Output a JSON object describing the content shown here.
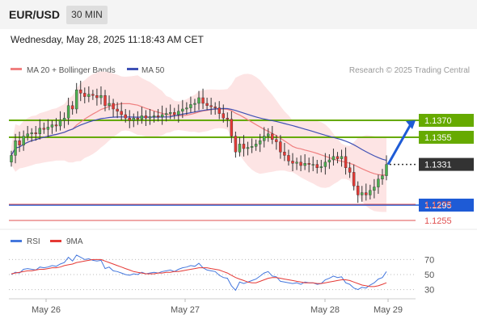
{
  "header": {
    "symbol": "EUR/USD",
    "timeframe": "30 MIN"
  },
  "timestamp": "Wednesday, May 28, 2025 11:18:43 AM CET",
  "legend": {
    "ma20": "MA 20 + Bollinger Bands",
    "ma50": "MA 50",
    "source": "Research © 2025 Trading Central"
  },
  "rsi_legend": {
    "rsi": "RSI",
    "ma": "9MA"
  },
  "colors": {
    "up": "#4caf50",
    "down": "#e53935",
    "ma20": "#f08080",
    "ma50": "#3f51b5",
    "bollinger": "#fde4e4",
    "resistance": "#66aa00",
    "support": "#1e5bd6",
    "support_red": "#e05050",
    "current": "#333333",
    "arrow": "#1e5bd6",
    "rsi": "#4477dd",
    "rsi_ma": "#e53935"
  },
  "chart_data": [
    {
      "type": "candlestick",
      "title": "EUR/USD 30 MIN",
      "ylim": [
        1.128,
        1.1405
      ],
      "x_ticks": [
        "May 26",
        "May 27",
        "May 28",
        "May 29"
      ],
      "levels": [
        {
          "value": 1.137,
          "label": "1.1370",
          "kind": "resistance"
        },
        {
          "value": 1.1355,
          "label": "1.1355",
          "kind": "resistance"
        },
        {
          "value": 1.1331,
          "label": "1.1331",
          "kind": "current"
        },
        {
          "value": 1.1295,
          "label": "1.1295",
          "kind": "support"
        },
        {
          "value": 1.1275,
          "label": "1.1275",
          "kind": "support_minor"
        },
        {
          "value": 1.1255,
          "label": "1.1255",
          "kind": "support_minor"
        }
      ],
      "close": [
        1.1339,
        1.1352,
        1.1348,
        1.1356,
        1.1358,
        1.1359,
        1.1358,
        1.1363,
        1.1362,
        1.1364,
        1.1366,
        1.1365,
        1.137,
        1.1372,
        1.1383,
        1.138,
        1.1397,
        1.1394,
        1.1391,
        1.1393,
        1.1392,
        1.139,
        1.1392,
        1.1383,
        1.1385,
        1.138,
        1.1378,
        1.1375,
        1.1372,
        1.137,
        1.1372,
        1.1371,
        1.1374,
        1.1372,
        1.1373,
        1.1374,
        1.1373,
        1.1375,
        1.1376,
        1.1377,
        1.1375,
        1.1378,
        1.138,
        1.1381,
        1.1384,
        1.1385,
        1.139,
        1.1385,
        1.1383,
        1.1382,
        1.1381,
        1.1376,
        1.1372,
        1.1371,
        1.1356,
        1.1342,
        1.1349,
        1.1345,
        1.1346,
        1.1347,
        1.1349,
        1.1352,
        1.1356,
        1.1358,
        1.1353,
        1.1351,
        1.1342,
        1.1339,
        1.1334,
        1.1332,
        1.1333,
        1.133,
        1.1332,
        1.1331,
        1.1331,
        1.1328,
        1.1329,
        1.1333,
        1.1335,
        1.1338,
        1.1336,
        1.1338,
        1.1328,
        1.1324,
        1.1312,
        1.1304,
        1.1306,
        1.1304,
        1.1308,
        1.1311,
        1.1318,
        1.1321,
        1.1331
      ],
      "ma20_label": "MA 20 + Bollinger Bands",
      "ma50_label": "MA 50",
      "forecast": "arrow up to 1.1370"
    },
    {
      "type": "line",
      "title": "RSI",
      "ylim": [
        22,
        78
      ],
      "gridlines": [
        70,
        50,
        30
      ],
      "series": [
        {
          "name": "RSI",
          "values": [
            50,
            53,
            52,
            57,
            58,
            57,
            56,
            60,
            59,
            60,
            62,
            61,
            64,
            66,
            73,
            68,
            76,
            73,
            70,
            71,
            69,
            68,
            69,
            58,
            60,
            55,
            54,
            52,
            50,
            49,
            51,
            50,
            53,
            51,
            52,
            53,
            52,
            54,
            55,
            56,
            54,
            57,
            59,
            60,
            62,
            61,
            65,
            59,
            56,
            55,
            54,
            49,
            46,
            45,
            35,
            29,
            40,
            38,
            40,
            42,
            44,
            48,
            52,
            54,
            48,
            47,
            41,
            40,
            39,
            38,
            39,
            37,
            40,
            39,
            39,
            37,
            38,
            43,
            45,
            48,
            46,
            47,
            39,
            37,
            32,
            30,
            33,
            32,
            36,
            39,
            44,
            46,
            54
          ]
        },
        {
          "name": "9MA",
          "values": [
            51,
            52,
            53,
            54,
            55,
            55,
            56,
            57,
            57,
            58,
            59,
            59,
            60,
            62,
            63,
            64,
            66,
            67,
            68,
            69,
            70,
            70,
            70,
            68,
            66,
            64,
            62,
            60,
            58,
            56,
            54,
            53,
            52,
            51,
            51,
            51,
            52,
            52,
            53,
            53,
            54,
            54,
            55,
            56,
            57,
            58,
            59,
            59,
            59,
            58,
            57,
            56,
            54,
            52,
            49,
            46,
            44,
            42,
            40,
            39,
            39,
            41,
            43,
            45,
            46,
            46,
            45,
            44,
            43,
            42,
            41,
            40,
            39,
            39,
            39,
            38,
            38,
            39,
            40,
            41,
            42,
            43,
            43,
            42,
            40,
            38,
            36,
            35,
            34,
            34,
            35,
            37,
            39
          ]
        }
      ]
    }
  ]
}
